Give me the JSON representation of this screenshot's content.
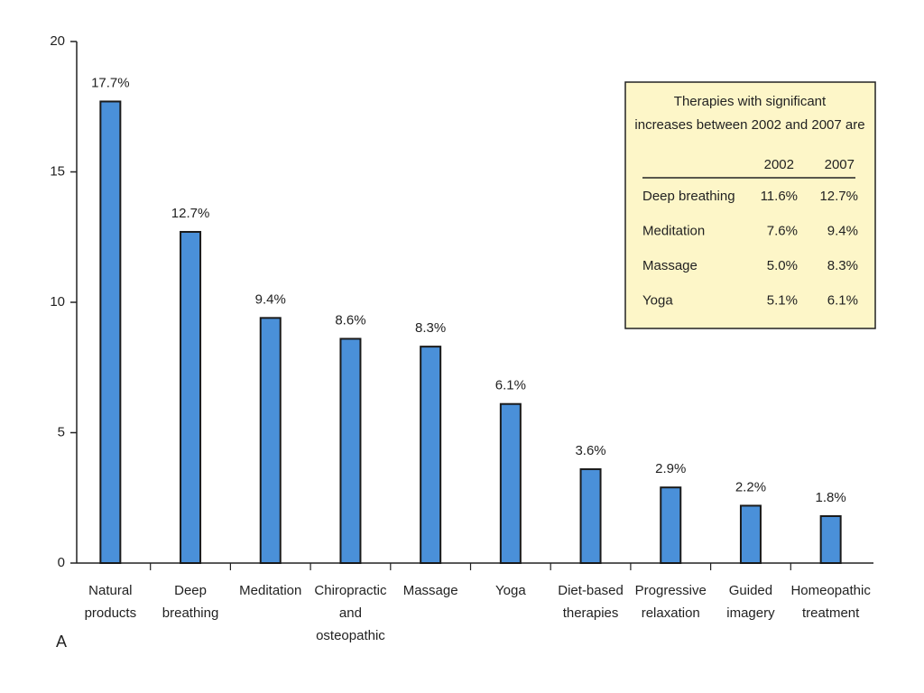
{
  "chart_data": {
    "type": "bar",
    "panel_label": "A",
    "categories": [
      [
        "Natural",
        "products"
      ],
      [
        "Deep",
        "breathing"
      ],
      [
        "Meditation"
      ],
      [
        "Chiropractic",
        "and",
        "osteopathic"
      ],
      [
        "Massage"
      ],
      [
        "Yoga"
      ],
      [
        "Diet-based",
        "therapies"
      ],
      [
        "Progressive",
        "relaxation"
      ],
      [
        "Guided",
        "imagery"
      ],
      [
        "Homeopathic",
        "treatment"
      ]
    ],
    "values": [
      17.7,
      12.7,
      9.4,
      8.6,
      8.3,
      6.1,
      3.6,
      2.9,
      2.2,
      1.8
    ],
    "value_labels": [
      "17.7%",
      "12.7%",
      "9.4%",
      "8.6%",
      "8.3%",
      "6.1%",
      "3.6%",
      "2.9%",
      "2.2%",
      "1.8%"
    ],
    "color": "#4a90d9",
    "ylim": [
      0,
      20
    ],
    "yticks": [
      0,
      5,
      10,
      15,
      20
    ],
    "grid": false,
    "inset": {
      "title": [
        "Therapies with significant",
        "increases between 2002 and 2007 are"
      ],
      "columns": [
        "2002",
        "2007"
      ],
      "rows": [
        [
          "Deep breathing",
          "11.6%",
          "12.7%"
        ],
        [
          "Meditation",
          "7.6%",
          "9.4%"
        ],
        [
          "Massage",
          "5.0%",
          "8.3%"
        ],
        [
          "Yoga",
          "5.1%",
          "6.1%"
        ]
      ]
    }
  }
}
